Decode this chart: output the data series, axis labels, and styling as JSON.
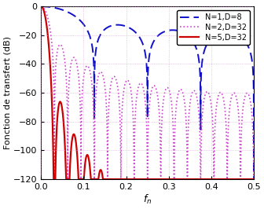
{
  "title": "",
  "xlabel": "$f_n$",
  "ylabel": "Fonction de transfert (dB)",
  "xlim": [
    0,
    0.5
  ],
  "ylim": [
    -120,
    0
  ],
  "yticks": [
    0,
    -20,
    -40,
    -60,
    -80,
    -100,
    -120
  ],
  "xticks": [
    0,
    0.1,
    0.2,
    0.3,
    0.4,
    0.5
  ],
  "grid_color": "#d9a0d9",
  "background_color": "#ffffff",
  "lines": [
    {
      "N": 1,
      "D": 8,
      "color": "#1010cc",
      "linestyle": "--",
      "linewidth": 1.4,
      "label": "N=1,D=8",
      "dashes": [
        6,
        3
      ]
    },
    {
      "N": 2,
      "D": 32,
      "color": "#cc44cc",
      "linestyle": ":",
      "linewidth": 1.2,
      "label": "N=2,D=32",
      "dashes": null
    },
    {
      "N": 5,
      "D": 32,
      "color": "#cc0000",
      "linestyle": "-",
      "linewidth": 1.6,
      "label": "N=5,D=32",
      "dashes": null
    }
  ],
  "legend_loc": "upper right",
  "legend_fontsize": 7,
  "figsize": [
    3.36,
    2.66
  ],
  "dpi": 100,
  "tick_fontsize": 8,
  "ylabel_fontsize": 8,
  "xlabel_fontsize": 9
}
